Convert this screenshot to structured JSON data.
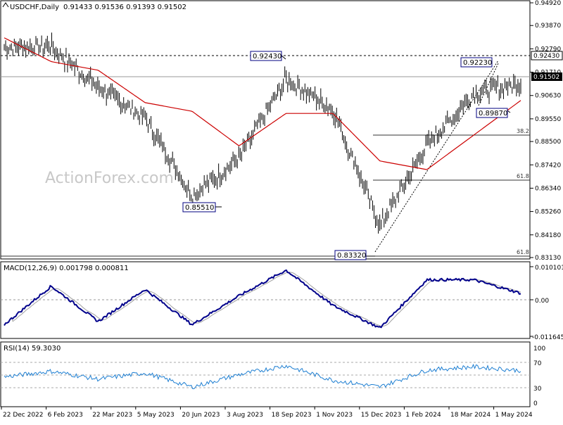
{
  "header": {
    "symbol": "USDCHF,Daily",
    "ohlc": "0.91433 0.91536 0.91393 0.91502",
    "watermark": "ActionForex.com"
  },
  "colors": {
    "bars": "#000000",
    "sma": "#cc0000",
    "macd_line": "#00008b",
    "macd_signal": "#a0a0a0",
    "rsi_line": "#1e7fd2",
    "price_label_bg": "#000000",
    "ref_label_bg": "#ffffff",
    "annotation_border": "#000080"
  },
  "price_axis": {
    "min": 0.8313,
    "max": 0.9492,
    "ticks": [
      "0.94920",
      "0.93870",
      "0.92790",
      "0.91710",
      "0.90630",
      "0.89550",
      "0.88500",
      "0.87420",
      "0.86340",
      "0.85260",
      "0.84180",
      "0.83130"
    ],
    "current_label": "0.91502",
    "ref_label": "0.92430"
  },
  "x_axis": {
    "labels": [
      "22 Dec 2022",
      "6 Feb 2023",
      "22 Mar 2023",
      "5 May 2023",
      "20 Jun 2023",
      "3 Aug 2023",
      "18 Sep 2023",
      "1 Nov 2023",
      "15 Dec 2023",
      "1 Feb 2024",
      "18 Mar 2024",
      "1 May 2024"
    ]
  },
  "annotations": {
    "high_sep": "0.92430",
    "low_jul": "0.85510",
    "low_dec": "0.83320",
    "high_apr": "0.92230",
    "low_may": "0.89870",
    "fib_382": "38.2",
    "fib_618_a": "61.8",
    "fib_618_b": "61.8"
  },
  "macd_panel": {
    "title": "MACD(12,26,9) 0.001798 0.000811",
    "ticks": [
      "0.010101",
      "0.00",
      "-0.011645"
    ],
    "min": -0.011645,
    "max": 0.010101
  },
  "rsi_panel": {
    "title": "RSI(14) 59.3030",
    "ticks": [
      "100",
      "70",
      "30",
      "0"
    ],
    "levels": [
      70,
      50,
      30
    ]
  },
  "chart_data": [
    {
      "type": "line",
      "name": "USDCHF Daily price",
      "ylim": [
        0.8313,
        0.9492
      ],
      "x": [
        "22 Dec 2022",
        "6 Feb 2023",
        "22 Mar 2023",
        "5 May 2023",
        "20 Jun 2023",
        "3 Aug 2023",
        "18 Sep 2023",
        "1 Nov 2023",
        "15 Dec 2023",
        "1 Feb 2024",
        "18 Mar 2024",
        "1 May 2024"
      ],
      "series": [
        {
          "values": [
            0.929,
            0.929,
            0.91,
            0.896,
            0.86,
            0.877,
            0.914,
            0.9,
            0.846,
            0.883,
            0.907,
            0.912
          ]
        },
        {
          "name": "SMA",
          "values": [
            0.933,
            0.922,
            0.918,
            0.903,
            0.899,
            0.883,
            0.898,
            0.898,
            0.876,
            0.872,
            0.888,
            0.904
          ]
        }
      ]
    },
    {
      "type": "line",
      "name": "MACD(12,26,9)",
      "ylim": [
        -0.011645,
        0.010101
      ],
      "x": [
        "22 Dec 2022",
        "6 Feb 2023",
        "22 Mar 2023",
        "5 May 2023",
        "20 Jun 2023",
        "3 Aug 2023",
        "18 Sep 2023",
        "1 Nov 2023",
        "15 Dec 2023",
        "1 Feb 2024",
        "18 Mar 2024",
        "1 May 2024"
      ],
      "series": [
        {
          "values": [
            -0.008,
            0.004,
            -0.007,
            0.003,
            -0.008,
            0.001,
            0.009,
            -0.002,
            -0.009,
            0.006,
            0.006,
            0.0018
          ]
        }
      ]
    },
    {
      "type": "line",
      "name": "RSI(14)",
      "ylim": [
        0,
        100
      ],
      "x": [
        "22 Dec 2022",
        "6 Feb 2023",
        "22 Mar 2023",
        "5 May 2023",
        "20 Jun 2023",
        "3 Aug 2023",
        "18 Sep 2023",
        "1 Nov 2023",
        "15 Dec 2023",
        "1 Feb 2024",
        "18 Mar 2024",
        "1 May 2024"
      ],
      "series": [
        {
          "values": [
            48,
            58,
            44,
            55,
            30,
            52,
            68,
            42,
            30,
            60,
            66,
            59.3
          ]
        }
      ]
    }
  ]
}
